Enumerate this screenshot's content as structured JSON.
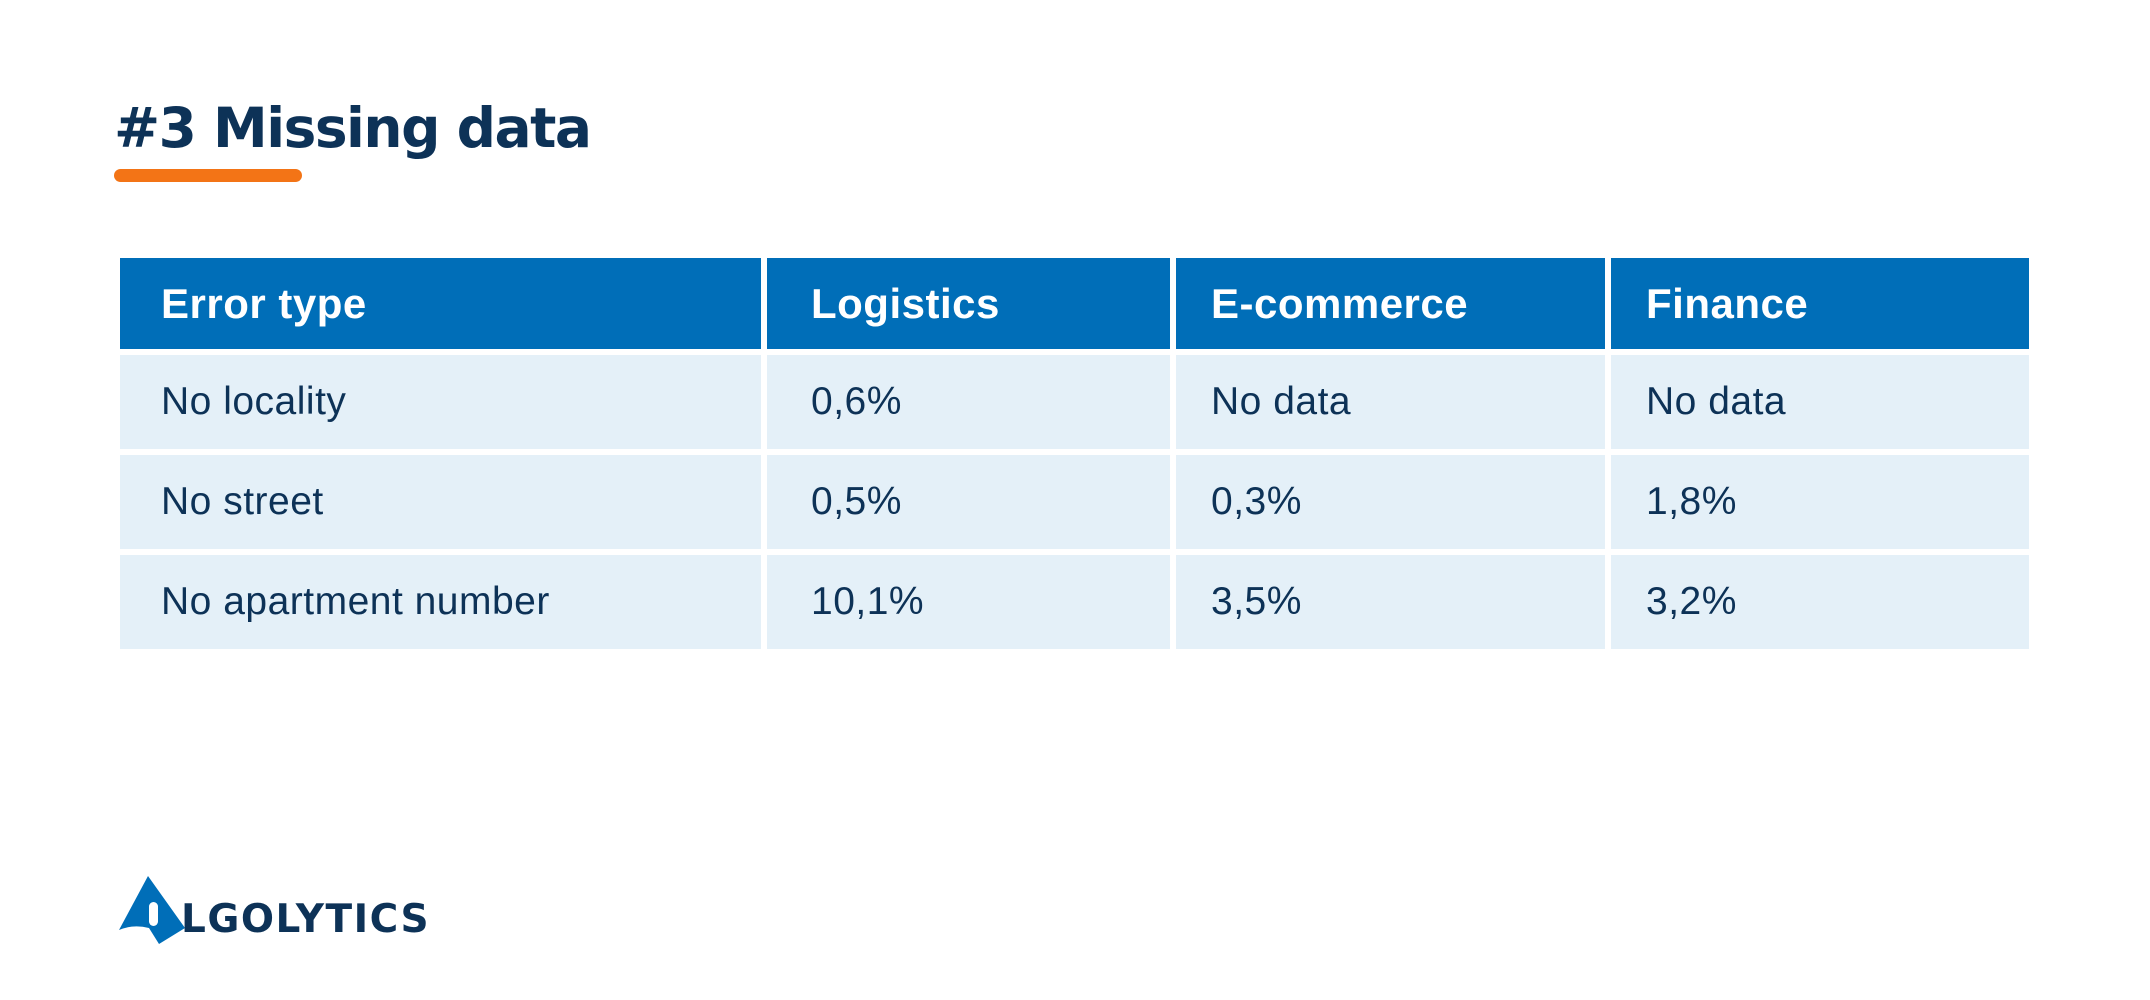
{
  "title": "#3 Missing data",
  "accent_color": "#f37416",
  "header_color": "#006eb8",
  "cell_color": "#e4f0f8",
  "text_color": "#0d3257",
  "table": {
    "columns": [
      "Error type",
      "Logistics",
      "E-commerce",
      "Finance"
    ],
    "rows": [
      [
        "No locality",
        "0,6%",
        "No data",
        "No data"
      ],
      [
        "No street",
        "0,5%",
        "0,3%",
        "1,8%"
      ],
      [
        "No apartment number",
        "10,1%",
        "3,5%",
        "3,2%"
      ]
    ]
  },
  "logo": {
    "icon": "algolytics-a-icon",
    "text": "LGOLYTICS"
  }
}
